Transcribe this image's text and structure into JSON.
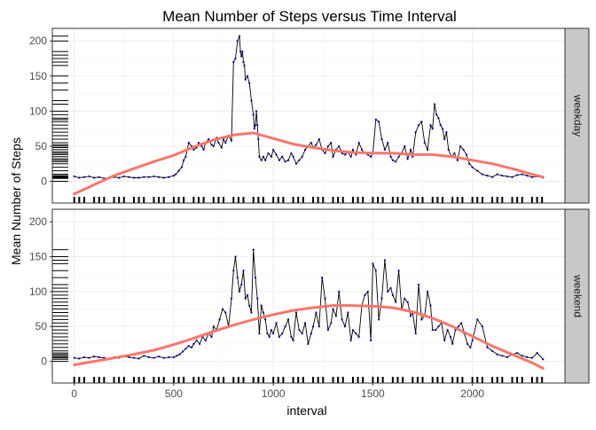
{
  "chart_data": {
    "type": "line",
    "title": "Mean Number of Steps versus Time Interval",
    "xlabel": "interval",
    "ylabel": "Mean Number of Steps",
    "xlim": [
      -110,
      2465
    ],
    "ylim": [
      -31,
      218
    ],
    "x_ticks": [
      0,
      500,
      1000,
      1500,
      2000
    ],
    "x_tick_labels": [
      "0",
      "500",
      "1000",
      "1500",
      "2000"
    ],
    "y_ticks": [
      0,
      50,
      100,
      150,
      200
    ],
    "y_tick_labels": [
      "0",
      "50",
      "100",
      "150",
      "200"
    ],
    "grid": true,
    "series_color": "#00008B",
    "line_color": "#000000",
    "smooth_color": "#F8766D",
    "strip_fill": "#C8C8C8",
    "panels": [
      {
        "strip_label": "weekday",
        "x": [
          0,
          25,
          50,
          75,
          100,
          125,
          150,
          175,
          200,
          225,
          250,
          275,
          300,
          325,
          350,
          375,
          400,
          425,
          450,
          475,
          500,
          510,
          525,
          540,
          550,
          560,
          575,
          590,
          600,
          615,
          625,
          640,
          650,
          660,
          675,
          690,
          700,
          715,
          725,
          740,
          750,
          760,
          775,
          790,
          800,
          810,
          820,
          830,
          835,
          840,
          845,
          850,
          855,
          860,
          870,
          880,
          890,
          900,
          905,
          910,
          915,
          920,
          925,
          930,
          940,
          950,
          960,
          975,
          990,
          1000,
          1015,
          1030,
          1045,
          1060,
          1075,
          1090,
          1100,
          1115,
          1130,
          1145,
          1160,
          1175,
          1190,
          1200,
          1215,
          1230,
          1245,
          1260,
          1275,
          1290,
          1300,
          1315,
          1330,
          1345,
          1360,
          1375,
          1390,
          1400,
          1415,
          1430,
          1445,
          1460,
          1475,
          1490,
          1500,
          1515,
          1530,
          1545,
          1560,
          1575,
          1590,
          1600,
          1615,
          1630,
          1645,
          1660,
          1675,
          1690,
          1700,
          1715,
          1730,
          1745,
          1760,
          1775,
          1790,
          1800,
          1810,
          1820,
          1830,
          1840,
          1850,
          1860,
          1870,
          1880,
          1895,
          1910,
          1925,
          1940,
          1955,
          1970,
          1985,
          2000,
          2025,
          2050,
          2075,
          2100,
          2125,
          2150,
          2175,
          2200,
          2225,
          2250,
          2275,
          2300,
          2325,
          2355
        ],
        "y": [
          7,
          5,
          6,
          7,
          5,
          6,
          4,
          5,
          6,
          5,
          7,
          6,
          5,
          5,
          6,
          6,
          7,
          6,
          5,
          6,
          8,
          10,
          15,
          20,
          30,
          35,
          55,
          50,
          45,
          48,
          55,
          50,
          45,
          55,
          60,
          52,
          50,
          62,
          55,
          48,
          60,
          55,
          65,
          58,
          170,
          175,
          200,
          207,
          185,
          178,
          185,
          170,
          165,
          145,
          150,
          140,
          115,
          95,
          75,
          80,
          100,
          80,
          60,
          35,
          30,
          35,
          30,
          40,
          35,
          45,
          38,
          30,
          35,
          28,
          30,
          40,
          35,
          25,
          30,
          35,
          45,
          50,
          55,
          48,
          52,
          60,
          45,
          40,
          50,
          55,
          35,
          45,
          50,
          40,
          38,
          42,
          35,
          45,
          38,
          55,
          45,
          40,
          38,
          35,
          40,
          88,
          85,
          60,
          45,
          55,
          35,
          30,
          28,
          35,
          40,
          50,
          32,
          45,
          35,
          70,
          80,
          85,
          55,
          45,
          80,
          75,
          110,
          95,
          90,
          80,
          75,
          60,
          70,
          45,
          35,
          40,
          30,
          50,
          45,
          38,
          25,
          20,
          15,
          10,
          8,
          6,
          10,
          8,
          7,
          6,
          9,
          10,
          8,
          6,
          7,
          5
        ],
        "smooth_x": [
          0,
          100,
          200,
          300,
          400,
          500,
          600,
          700,
          800,
          900,
          1000,
          1100,
          1200,
          1300,
          1400,
          1500,
          1600,
          1700,
          1800,
          1900,
          2000,
          2100,
          2200,
          2300,
          2355
        ],
        "smooth_y": [
          -18,
          -5,
          8,
          18,
          28,
          37,
          49,
          59,
          66,
          69,
          61,
          53,
          48,
          44,
          41,
          40,
          40,
          38,
          38,
          35,
          30,
          25,
          18,
          10,
          6
        ],
        "rug_y": [
          0,
          4,
          5,
          6,
          7,
          8,
          10,
          15,
          20,
          25,
          28,
          30,
          32,
          35,
          38,
          40,
          42,
          45,
          48,
          50,
          52,
          55,
          60,
          65,
          70,
          75,
          80,
          85,
          88,
          90,
          95,
          100,
          110,
          115,
          130,
          140,
          150,
          165,
          170,
          175,
          180,
          185,
          200,
          207
        ]
      },
      {
        "strip_label": "weekend",
        "x": [
          0,
          25,
          50,
          75,
          100,
          125,
          150,
          175,
          200,
          225,
          250,
          275,
          300,
          325,
          350,
          375,
          400,
          425,
          450,
          475,
          500,
          515,
          530,
          545,
          560,
          575,
          590,
          600,
          615,
          630,
          645,
          660,
          675,
          690,
          700,
          715,
          730,
          745,
          760,
          775,
          790,
          800,
          810,
          820,
          830,
          840,
          850,
          860,
          870,
          880,
          890,
          900,
          910,
          920,
          930,
          940,
          950,
          960,
          970,
          980,
          990,
          1000,
          1015,
          1030,
          1045,
          1060,
          1075,
          1090,
          1100,
          1115,
          1130,
          1145,
          1160,
          1175,
          1190,
          1200,
          1215,
          1230,
          1245,
          1260,
          1275,
          1290,
          1300,
          1315,
          1330,
          1345,
          1360,
          1375,
          1390,
          1400,
          1415,
          1430,
          1445,
          1460,
          1475,
          1490,
          1500,
          1515,
          1530,
          1545,
          1560,
          1575,
          1590,
          1600,
          1615,
          1630,
          1645,
          1660,
          1675,
          1690,
          1700,
          1715,
          1730,
          1745,
          1760,
          1775,
          1790,
          1800,
          1815,
          1830,
          1845,
          1860,
          1875,
          1890,
          1900,
          1915,
          1930,
          1945,
          1960,
          1975,
          1990,
          2000,
          2025,
          2050,
          2075,
          2100,
          2125,
          2150,
          2175,
          2200,
          2225,
          2250,
          2275,
          2300,
          2325,
          2355
        ],
        "y": [
          5,
          4,
          6,
          5,
          7,
          6,
          5,
          4,
          6,
          5,
          7,
          6,
          5,
          4,
          8,
          6,
          5,
          7,
          5,
          6,
          6,
          8,
          10,
          14,
          18,
          22,
          20,
          25,
          30,
          25,
          35,
          30,
          40,
          35,
          50,
          45,
          60,
          75,
          70,
          50,
          90,
          130,
          150,
          120,
          100,
          110,
          130,
          90,
          95,
          80,
          70,
          160,
          120,
          90,
          40,
          80,
          70,
          60,
          40,
          35,
          45,
          40,
          55,
          35,
          40,
          50,
          60,
          35,
          30,
          70,
          45,
          40,
          55,
          25,
          40,
          50,
          70,
          50,
          120,
          90,
          45,
          55,
          75,
          65,
          100,
          60,
          50,
          70,
          30,
          45,
          40,
          35,
          80,
          95,
          100,
          30,
          140,
          130,
          60,
          90,
          145,
          100,
          105,
          95,
          85,
          130,
          75,
          90,
          85,
          65,
          70,
          40,
          110,
          60,
          65,
          100,
          80,
          45,
          45,
          50,
          55,
          30,
          45,
          35,
          25,
          45,
          50,
          55,
          40,
          25,
          20,
          30,
          60,
          50,
          20,
          15,
          10,
          8,
          6,
          10,
          12,
          8,
          6,
          5,
          12,
          3
        ],
        "smooth_x": [
          0,
          100,
          200,
          300,
          400,
          500,
          600,
          700,
          800,
          900,
          1000,
          1100,
          1200,
          1300,
          1400,
          1500,
          1600,
          1700,
          1800,
          1900,
          2000,
          2100,
          2200,
          2300,
          2355
        ],
        "smooth_y": [
          -5,
          0,
          5,
          10,
          16,
          24,
          33,
          43,
          52,
          60,
          67,
          73,
          77,
          80,
          80,
          79,
          77,
          71,
          62,
          50,
          36,
          22,
          10,
          -2,
          -10
        ],
        "rug_y": [
          0,
          3,
          5,
          6,
          8,
          10,
          12,
          15,
          20,
          25,
          30,
          35,
          40,
          45,
          50,
          55,
          60,
          65,
          70,
          75,
          80,
          85,
          90,
          95,
          100,
          105,
          110,
          120,
          130,
          140,
          145,
          150,
          160
        ]
      }
    ]
  }
}
